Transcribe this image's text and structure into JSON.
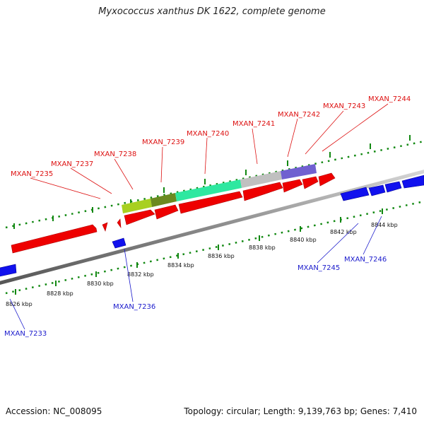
{
  "title": "Myxococcus xanthus DK 1622, complete genome",
  "footer": {
    "accession": "Accession: NC_008095",
    "summary": "Topology: circular; Length: 9,139,763 bp; Genes: 7,410"
  },
  "scale_labels": [
    "8826 kbp",
    "8828 kbp",
    "8830 kbp",
    "8832 kbp",
    "8834 kbp",
    "8836 kbp",
    "8838 kbp",
    "8840 kbp",
    "8842 kbp",
    "8844 kbp"
  ],
  "forward_genes": [
    "MXAN_7235",
    "MXAN_7237",
    "MXAN_7238",
    "MXAN_7239",
    "MXAN_7240",
    "MXAN_7241",
    "MXAN_7242",
    "MXAN_7243",
    "MXAN_7244"
  ],
  "reverse_genes": [
    "MXAN_7233",
    "MXAN_7236",
    "MXAN_7245",
    "MXAN_7246"
  ],
  "colors": {
    "forward": "#ee0000",
    "reverse": "#1111ee",
    "backbone": "#8a8a8a",
    "ticks": "#118811",
    "cluster": [
      "#a8d020",
      "#6b8a20",
      "#2ee8a0",
      "#c0c0c0",
      "#7060d0"
    ]
  }
}
